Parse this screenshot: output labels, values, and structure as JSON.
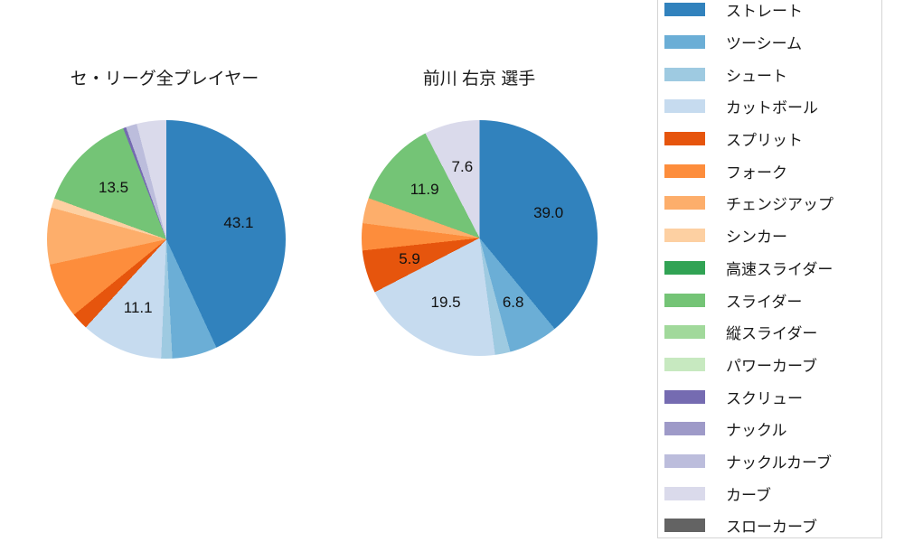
{
  "chart_data": [
    {
      "type": "pie",
      "title": "セ・リーグ全プレイヤー",
      "unit": "percent",
      "start_angle_deg": 0,
      "direction": "clockwise",
      "legend_position": "right",
      "categories": [
        "ストレート",
        "ツーシーム",
        "シュート",
        "カットボール",
        "スプリット",
        "フォーク",
        "チェンジアップ",
        "シンカー",
        "スライダー",
        "スクリュー",
        "ナックルカーブ",
        "カーブ"
      ],
      "values": [
        43.1,
        6.1,
        1.5,
        11.1,
        2.3,
        7.5,
        7.7,
        1.3,
        13.5,
        0.4,
        1.5,
        4.0
      ],
      "shown_labels": [
        "43.1",
        null,
        null,
        "11.1",
        null,
        null,
        null,
        null,
        "13.5",
        null,
        null,
        null
      ]
    },
    {
      "type": "pie",
      "title": "前川 右京 選手",
      "unit": "percent",
      "start_angle_deg": 0,
      "direction": "clockwise",
      "legend_position": "right",
      "categories": [
        "ストレート",
        "ツーシーム",
        "シュート",
        "カットボール",
        "スプリット",
        "フォーク",
        "チェンジアップ",
        "スライダー",
        "カーブ"
      ],
      "values": [
        39.0,
        6.8,
        2.1,
        19.5,
        5.9,
        3.7,
        3.5,
        11.9,
        7.6
      ],
      "shown_labels": [
        "39.0",
        "6.8",
        null,
        "19.5",
        "5.9",
        null,
        null,
        "11.9",
        "7.6"
      ]
    }
  ],
  "legend": {
    "items": [
      {
        "label": "ストレート",
        "color": "#3182bd"
      },
      {
        "label": "ツーシーム",
        "color": "#6baed6"
      },
      {
        "label": "シュート",
        "color": "#9ecae1"
      },
      {
        "label": "カットボール",
        "color": "#c6dbef"
      },
      {
        "label": "スプリット",
        "color": "#e6550d"
      },
      {
        "label": "フォーク",
        "color": "#fd8d3c"
      },
      {
        "label": "チェンジアップ",
        "color": "#fdae6b"
      },
      {
        "label": "シンカー",
        "color": "#fdd0a2"
      },
      {
        "label": "高速スライダー",
        "color": "#31a354"
      },
      {
        "label": "スライダー",
        "color": "#74c476"
      },
      {
        "label": "縦スライダー",
        "color": "#a1d99b"
      },
      {
        "label": "パワーカーブ",
        "color": "#c7e9c0"
      },
      {
        "label": "スクリュー",
        "color": "#756bb1"
      },
      {
        "label": "ナックル",
        "color": "#9e9ac8"
      },
      {
        "label": "ナックルカーブ",
        "color": "#bcbddc"
      },
      {
        "label": "カーブ",
        "color": "#dadaeb"
      },
      {
        "label": "スローカーブ",
        "color": "#636363"
      }
    ]
  },
  "style": {
    "background": "#ffffff",
    "text_color": "#1a1a1a",
    "legend_border_color": "#d4d4d4"
  }
}
